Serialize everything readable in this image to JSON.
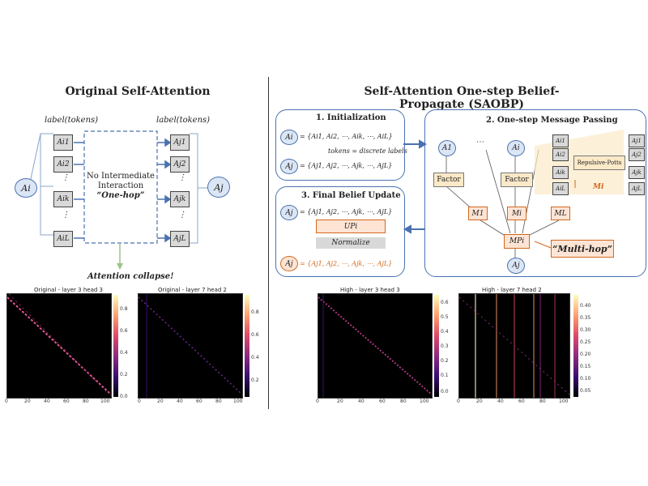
{
  "left": {
    "title": "Original Self-Attention",
    "label_left": "label(tokens)",
    "label_right": "label(tokens)",
    "node_left": "Ai",
    "node_right": "Aj",
    "tokens_left": [
      "Ai1",
      "Ai2",
      "⋮",
      "Aik",
      "⋮",
      "AiL"
    ],
    "tokens_right": [
      "Aj1",
      "Aj2",
      "⋮",
      "Ajk",
      "⋮",
      "AjL"
    ],
    "middle_line1": "No Intermediate",
    "middle_line2": "Interaction",
    "middle_line3": "“One-hop”",
    "collapse": "Attention collapse!",
    "heatmap1_title": "Original - layer 3 head 3",
    "heatmap2_title": "Original - layer 7 head 2"
  },
  "right": {
    "title": "Self-Attention One-step Belief-Propagate (SAOBP)",
    "init_title": "1. Initialization",
    "init_ai": "= {Ai1, Ai2, ⋯, Aik, ⋯, AiL}",
    "init_aj": "= {Aj1, Aj2, ⋯, Ajk, ⋯, AjL}",
    "init_note": "tokens = discrete labels",
    "mp_title": "2. One-step Message Passing",
    "final_title": "3. Final Belief Update",
    "final_aj": "= {Aj1, Aj2, ⋯, Ajk, ⋯, AjL}",
    "up": "UPi",
    "normalize": "Normalize",
    "factor": "Factor",
    "m1": "M1",
    "mi": "Mi",
    "ml": "ML",
    "mpi": "MPi",
    "repulsive": "Repulsive-Potts",
    "mi_out": "Mi",
    "multihop": "“Multi-hop”",
    "dots": "⋯",
    "heatmap1_title": "High - layer 3 head 3",
    "heatmap2_title": "High - layer 7 head 2"
  },
  "heatmaps": {
    "x_ticks": [
      "0",
      "20",
      "40",
      "60",
      "80",
      "100"
    ],
    "y_ticks": [
      "0",
      "20",
      "40",
      "60",
      "80",
      "100"
    ],
    "cbar1": [
      "0.8",
      "0.6",
      "0.4",
      "0.2",
      "0.0"
    ],
    "cbar2": [
      "0.8",
      "0.6",
      "0.4",
      "0.2"
    ],
    "cbar3": [
      "0.6",
      "0.5",
      "0.4",
      "0.3",
      "0.2",
      "0.1",
      "0.0"
    ],
    "cbar4": [
      "0.40",
      "0.35",
      "0.30",
      "0.25",
      "0.20",
      "0.15",
      "0.10",
      "0.05"
    ]
  }
}
